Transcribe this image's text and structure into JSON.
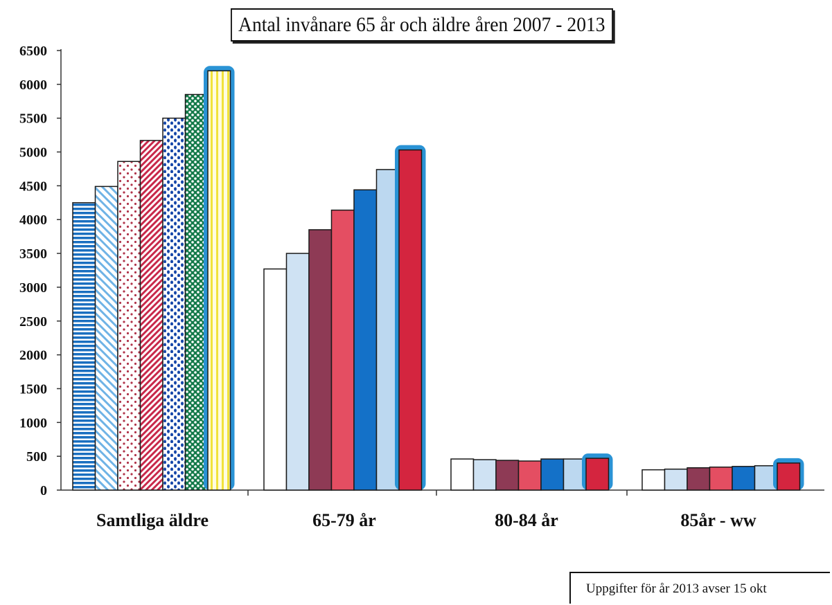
{
  "title": "Antal invånare 65 år och äldre åren 2007 - 2013",
  "note": "Uppgifter för år 2013 avser 15 okt",
  "chart_data": {
    "type": "bar",
    "title": "Antal invånare 65 år och äldre åren 2007 - 2013",
    "categories": [
      "Samtliga äldre",
      "65-79 år",
      "80-84 år",
      "85år - ww"
    ],
    "series_count": 7,
    "values": [
      [
        4250,
        4490,
        4860,
        5170,
        5500,
        5850,
        6200
      ],
      [
        3270,
        3500,
        3850,
        4140,
        4440,
        4740,
        5030
      ],
      [
        460,
        450,
        440,
        430,
        460,
        460,
        470
      ],
      [
        300,
        310,
        330,
        340,
        350,
        360,
        400
      ]
    ],
    "highlighted_series_index": 6,
    "yticks": [
      "0",
      "500",
      "1000",
      "1500",
      "2000",
      "2500",
      "3000",
      "3500",
      "4000",
      "4500",
      "5000",
      "5500",
      "6000",
      "6500"
    ],
    "ylim": [
      0,
      6500
    ],
    "grid": false,
    "legend": "none",
    "group_styles": {
      "samtliga": [
        {
          "pattern": "hlines",
          "color": "#1a6fc0"
        },
        {
          "pattern": "diag",
          "color": "#6fb3e6"
        },
        {
          "pattern": "dots",
          "color": "#b0344a"
        },
        {
          "pattern": "diag",
          "color": "#c8284a"
        },
        {
          "pattern": "dots",
          "color": "#1546a8"
        },
        {
          "pattern": "checker",
          "color": "#147a4a"
        },
        {
          "pattern": "vlines",
          "color": "#f1e23a"
        }
      ],
      "solid": [
        "#ffffff",
        "#cfe2f3",
        "#8e3a55",
        "#e44e62",
        "#1471c8",
        "#bcd8f0",
        "#d4253f"
      ]
    },
    "highlight_color": "#2a93d5"
  }
}
